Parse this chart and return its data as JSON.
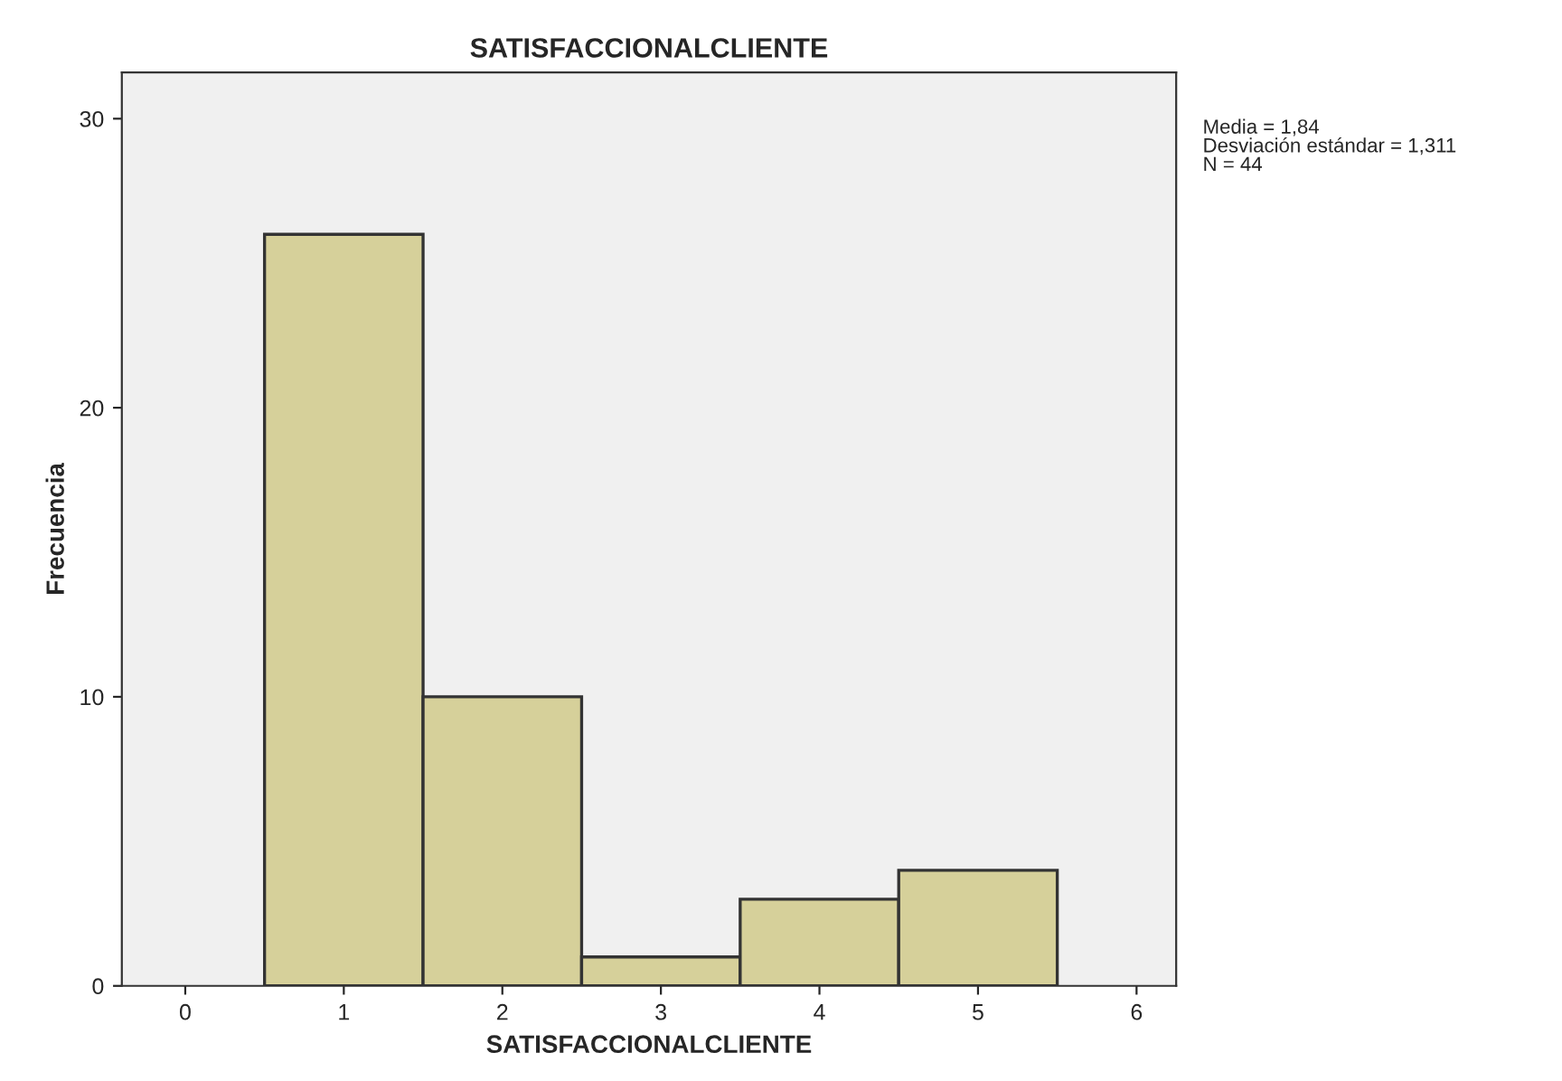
{
  "chart_data": {
    "type": "histogram",
    "title": "SATISFACCIONALCLIENTE",
    "xlabel": "SATISFACCIONALCLIENTE",
    "ylabel": "Frecuencia",
    "bins": [
      0.5,
      1.5,
      2.5,
      3.5,
      4.5,
      5.5
    ],
    "values": [
      26,
      10,
      1,
      3,
      4
    ],
    "color": "#d6d09a",
    "xlim": [
      -0.4,
      6.25
    ],
    "xticks": [
      0,
      1,
      2,
      3,
      4,
      5,
      6
    ],
    "ylim": [
      0,
      31.6
    ],
    "yticks": [
      0,
      10,
      20,
      30
    ],
    "grid": false,
    "annotations": [
      "Media = 1,84",
      "Desviación estándar = 1,311",
      "N = 44"
    ]
  }
}
